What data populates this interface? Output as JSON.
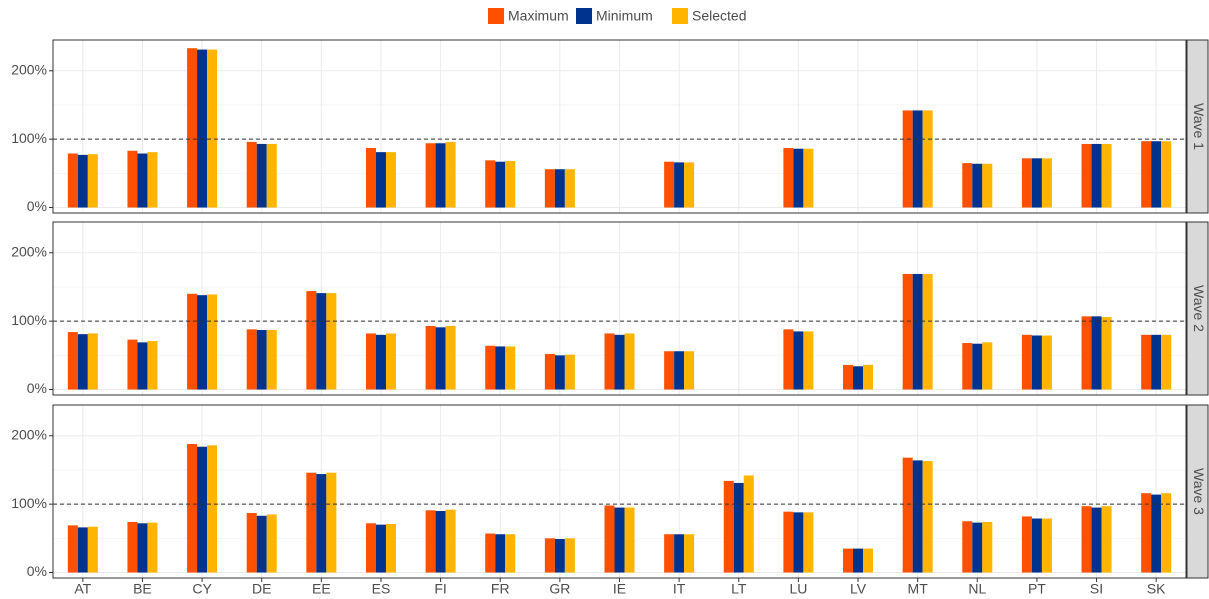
{
  "chart_data": {
    "type": "bar",
    "categories": [
      "AT",
      "BE",
      "CY",
      "DE",
      "EE",
      "ES",
      "FI",
      "FR",
      "GR",
      "IE",
      "IT",
      "LT",
      "LU",
      "LV",
      "MT",
      "NL",
      "PT",
      "SI",
      "SK"
    ],
    "series": [
      {
        "name": "Maximum",
        "color": "#ff5000"
      },
      {
        "name": "Minimum",
        "color": "#00338d"
      },
      {
        "name": "Selected",
        "color": "#ffb400"
      }
    ],
    "ylim": [
      -8,
      245
    ],
    "yticks": [
      {
        "value": 0,
        "label": "0%"
      },
      {
        "value": 100,
        "label": "100%"
      },
      {
        "value": 200,
        "label": "200%"
      }
    ],
    "reference_line": 100,
    "grid": true,
    "legend": "top",
    "panels": [
      {
        "label": "Wave 1",
        "series": [
          {
            "values": [
              79,
              83,
              233,
              96,
              null,
              87,
              94,
              69,
              56,
              null,
              67,
              null,
              87,
              null,
              142,
              65,
              72,
              93,
              97
            ]
          },
          {
            "values": [
              77,
              79,
              231,
              93,
              null,
              81,
              94,
              67,
              56,
              null,
              66,
              null,
              86,
              null,
              142,
              64,
              72,
              93,
              97
            ]
          },
          {
            "values": [
              78,
              81,
              231,
              93,
              null,
              81,
              96,
              68,
              56,
              null,
              66,
              null,
              86,
              null,
              142,
              64,
              72,
              93,
              97
            ]
          }
        ]
      },
      {
        "label": "Wave 2",
        "series": [
          {
            "values": [
              84,
              73,
              140,
              88,
              144,
              82,
              93,
              64,
              52,
              82,
              56,
              null,
              88,
              36,
              169,
              68,
              80,
              107,
              80
            ]
          },
          {
            "values": [
              81,
              69,
              138,
              87,
              141,
              80,
              91,
              63,
              50,
              80,
              56,
              null,
              85,
              34,
              169,
              67,
              79,
              107,
              80
            ]
          },
          {
            "values": [
              82,
              71,
              139,
              87,
              141,
              82,
              93,
              63,
              51,
              82,
              56,
              null,
              85,
              36,
              169,
              69,
              79,
              106,
              80
            ]
          }
        ]
      },
      {
        "label": "Wave 3",
        "series": [
          {
            "values": [
              69,
              74,
              188,
              87,
              146,
              72,
              91,
              57,
              50,
              98,
              56,
              134,
              89,
              35,
              168,
              75,
              82,
              97,
              116
            ]
          },
          {
            "values": [
              66,
              72,
              184,
              83,
              144,
              70,
              90,
              56,
              49,
              95,
              56,
              131,
              88,
              35,
              164,
              73,
              79,
              95,
              114
            ]
          },
          {
            "values": [
              67,
              73,
              186,
              85,
              146,
              71,
              92,
              56,
              50,
              95,
              56,
              142,
              88,
              35,
              163,
              74,
              79,
              97,
              116
            ]
          }
        ]
      }
    ]
  }
}
